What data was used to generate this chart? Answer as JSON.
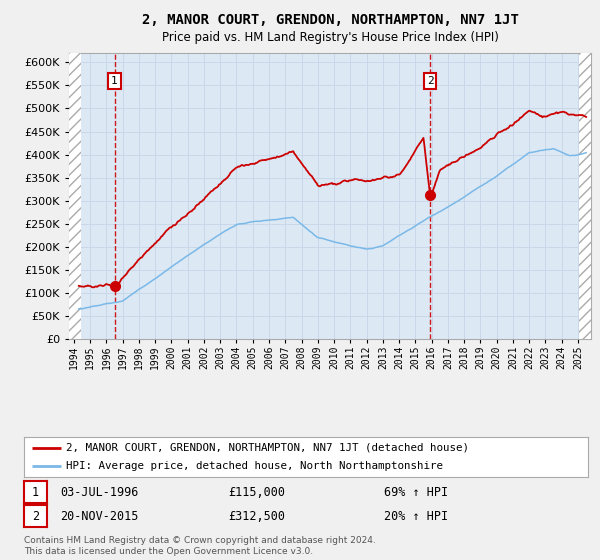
{
  "title": "2, MANOR COURT, GRENDON, NORTHAMPTON, NN7 1JT",
  "subtitle": "Price paid vs. HM Land Registry's House Price Index (HPI)",
  "legend_line1": "2, MANOR COURT, GRENDON, NORTHAMPTON, NN7 1JT (detached house)",
  "legend_line2": "HPI: Average price, detached house, North Northamptonshire",
  "annotation1_date": "03-JUL-1996",
  "annotation1_price": "£115,000",
  "annotation1_pct": "69% ↑ HPI",
  "annotation2_date": "20-NOV-2015",
  "annotation2_price": "£312,500",
  "annotation2_pct": "20% ↑ HPI",
  "footnote": "Contains HM Land Registry data © Crown copyright and database right 2024.\nThis data is licensed under the Open Government Licence v3.0.",
  "sale1_x": 1996.5,
  "sale1_y": 115000,
  "sale2_x": 2015.92,
  "sale2_y": 312500,
  "hpi_color": "#7ab8e8",
  "price_color": "#cc0000",
  "background_plot": "#dce9f5",
  "background_outer": "#f0f0f0",
  "grid_color": "#c8d8e8",
  "ylim": [
    0,
    620000
  ],
  "xlim_start": 1993.7,
  "xlim_end": 2025.8,
  "hatch_left_end": 1994.42,
  "hatch_right_start": 2025.08
}
